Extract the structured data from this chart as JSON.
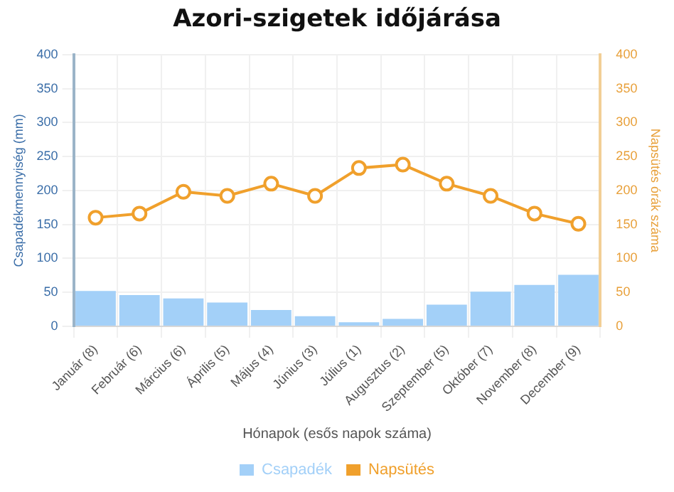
{
  "chart_data": {
    "type": "bar",
    "title": "Azori-szigetek időjárása",
    "categories": [
      "Január (8)",
      "Február (6)",
      "Március (6)",
      "Április (5)",
      "Május (4)",
      "Június (3)",
      "Július (1)",
      "Augusztus (2)",
      "Szeptember (5)",
      "Október (7)",
      "November (8)",
      "December (9)"
    ],
    "series": [
      {
        "name": "Csapadék",
        "color": "#a3d0f8",
        "values": [
          52,
          46,
          41,
          35,
          24,
          15,
          6,
          11,
          32,
          51,
          61,
          76
        ]
      },
      {
        "name": "Napsütés",
        "type": "line",
        "axis": "y2",
        "color": "#f0a02c",
        "values": [
          160,
          166,
          198,
          192,
          210,
          192,
          233,
          238,
          210,
          192,
          166,
          151
        ]
      }
    ],
    "xlabel": "Hónapok (esős napok száma)",
    "ylabel": "Csapadékmennyiség (mm)",
    "y2label": "Napsütés órák száma",
    "ylim": [
      0,
      400
    ],
    "yticks": [
      0,
      50,
      100,
      150,
      200,
      250,
      300,
      350,
      400
    ],
    "y2lim": [
      0,
      400
    ],
    "y2ticks": [
      0,
      50,
      100,
      150,
      200,
      250,
      300,
      350,
      400
    ],
    "grid": true,
    "legend": "bottom",
    "marker": "circle",
    "line_style": "solid"
  }
}
